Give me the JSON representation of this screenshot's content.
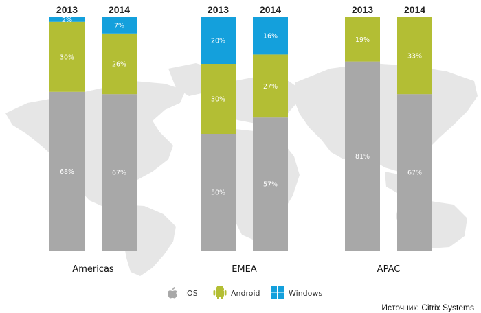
{
  "chart_data": {
    "type": "bar",
    "stacked": true,
    "colors": {
      "iOS": "#a8a8a8",
      "Android": "#b3be34",
      "Windows": "#14a0dc",
      "map": "#e6e6e6"
    },
    "ylim": [
      0,
      100
    ],
    "groups": [
      {
        "name": "Americas",
        "bars": [
          {
            "year": "2013",
            "values": {
              "iOS": 68,
              "Android": 30,
              "Windows": 2
            }
          },
          {
            "year": "2014",
            "values": {
              "iOS": 67,
              "Android": 26,
              "Windows": 7
            }
          }
        ]
      },
      {
        "name": "EMEA",
        "bars": [
          {
            "year": "2013",
            "values": {
              "iOS": 50,
              "Android": 30,
              "Windows": 20
            }
          },
          {
            "year": "2014",
            "values": {
              "iOS": 57,
              "Android": 27,
              "Windows": 16
            }
          }
        ]
      },
      {
        "name": "APAC",
        "bars": [
          {
            "year": "2013",
            "values": {
              "iOS": 81,
              "Android": 19,
              "Windows": 0
            }
          },
          {
            "year": "2014",
            "values": {
              "iOS": 67,
              "Android": 33,
              "Windows": 0
            }
          }
        ]
      }
    ],
    "series": [
      {
        "name": "iOS",
        "icon": "apple-icon"
      },
      {
        "name": "Android",
        "icon": "android-icon"
      },
      {
        "name": "Windows",
        "icon": "windows-icon"
      }
    ],
    "source": "Источник: Citrix Systems"
  }
}
